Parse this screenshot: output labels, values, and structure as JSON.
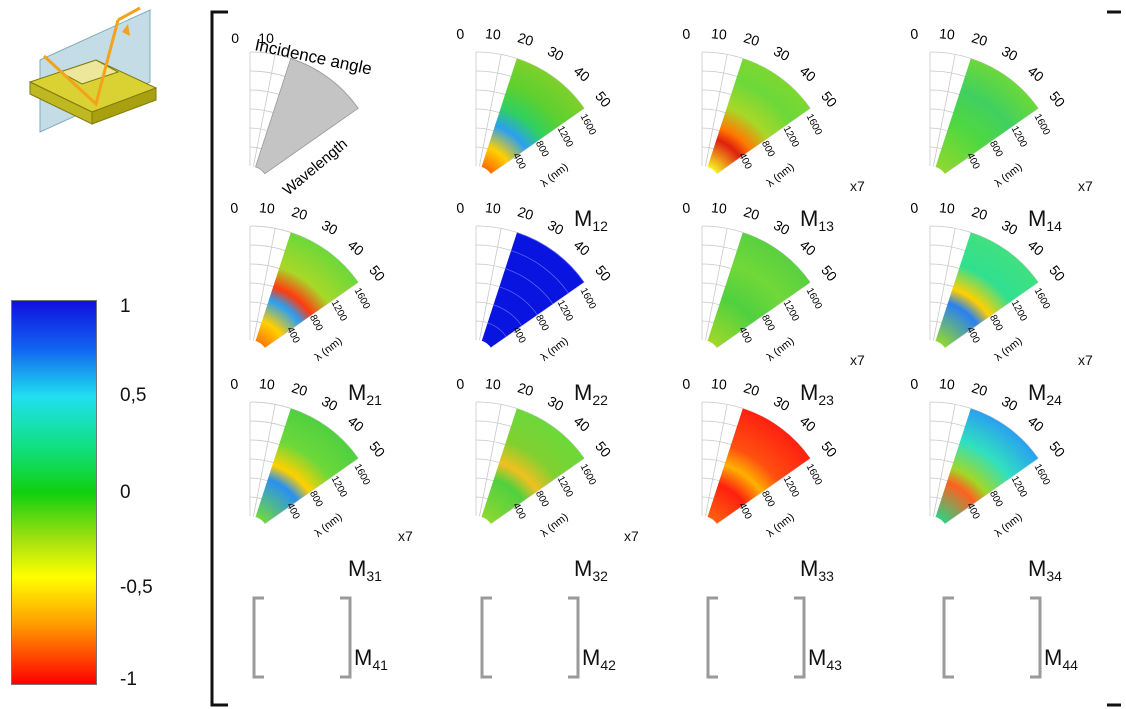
{
  "colorbar": {
    "ticks": [
      "1",
      "0,5",
      "0",
      "-0,5",
      "-1"
    ],
    "values": [
      1,
      0.5,
      0,
      -0.5,
      -1
    ],
    "colors": [
      "#1010e0",
      "#20e0f0",
      "#10d010",
      "#ffff00",
      "#ff0000"
    ]
  },
  "legend_fan": {
    "angle_label": "Incidence angle",
    "wavelength_label": "Wavelength",
    "angle_ticks": [
      "0",
      "10"
    ]
  },
  "fan_labels": {
    "angle_ticks": [
      "0",
      "10",
      "20",
      "30",
      "40",
      "50"
    ],
    "wavelength_ticks": [
      "1600",
      "1200",
      "800",
      "400"
    ],
    "wavelength_axis": "λ (nm)"
  },
  "matrix": {
    "m12": {
      "base": "M",
      "sub": "12",
      "scale": ""
    },
    "m13": {
      "base": "M",
      "sub": "13",
      "scale": "x7"
    },
    "m14": {
      "base": "M",
      "sub": "14",
      "scale": "x7"
    },
    "m21": {
      "base": "M",
      "sub": "21",
      "scale": ""
    },
    "m22": {
      "base": "M",
      "sub": "22",
      "scale": ""
    },
    "m23": {
      "base": "M",
      "sub": "23",
      "scale": "x7"
    },
    "m24": {
      "base": "M",
      "sub": "24",
      "scale": "x7"
    },
    "m31": {
      "base": "M",
      "sub": "31",
      "scale": "x7"
    },
    "m32": {
      "base": "M",
      "sub": "32",
      "scale": "x7"
    },
    "m33": {
      "base": "M",
      "sub": "33",
      "scale": ""
    },
    "m34": {
      "base": "M",
      "sub": "34",
      "scale": ""
    },
    "m41": {
      "base": "M",
      "sub": "41"
    },
    "m42": {
      "base": "M",
      "sub": "42"
    },
    "m43": {
      "base": "M",
      "sub": "43"
    },
    "m44": {
      "base": "M",
      "sub": "44"
    }
  }
}
